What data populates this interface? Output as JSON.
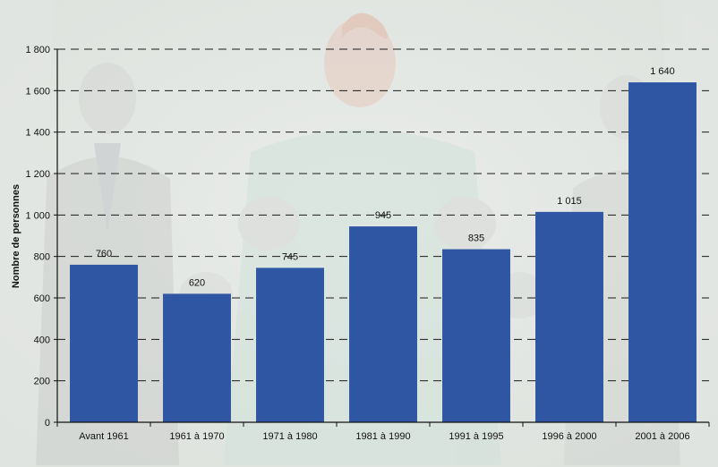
{
  "colors": {
    "bar": "#2f56a3",
    "grid": "#1a1a1a",
    "axis": "#111111"
  },
  "chart_data": {
    "type": "bar",
    "title": "",
    "xlabel": "",
    "ylabel": "Nombre de personnes",
    "categories": [
      "Avant 1961",
      "1961 à 1970",
      "1971 à 1980",
      "1981 à 1990",
      "1991 à 1995",
      "1996 à 2000",
      "2001 à 2006"
    ],
    "values": [
      760,
      620,
      745,
      945,
      835,
      1015,
      1640
    ],
    "value_labels": [
      "760",
      "620",
      "745",
      "945",
      "835",
      "1 015",
      "1 640"
    ],
    "ylim": [
      0,
      1800
    ],
    "yticks": [
      0,
      200,
      400,
      600,
      800,
      1000,
      1200,
      1400,
      1600,
      1800
    ],
    "ytick_labels": [
      "0",
      "200",
      "400",
      "600",
      "800",
      "1 000",
      "1 200",
      "1 400",
      "1 600",
      "1 800"
    ],
    "grid": true,
    "grid_style": "dashed",
    "legend": "none"
  }
}
